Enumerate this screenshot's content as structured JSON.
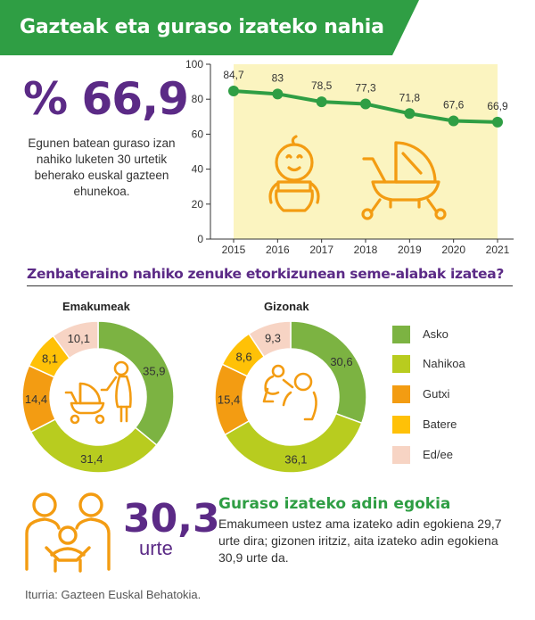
{
  "header": {
    "title": "Gazteak eta guraso izateko nahia",
    "bg_color": "#2f9e44"
  },
  "headline": {
    "value": "% 66,9",
    "description": "Egunen batean guraso izan nahiko luketen 30 urtetik beherako euskal gazteen ehunekoa."
  },
  "question": "Zenbateraino nahiko zenuke etorkizunean seme-alabak izatea?",
  "legend": [
    {
      "label": "Asko",
      "color": "#7cb342"
    },
    {
      "label": "Nahikoa",
      "color": "#b8cc1f"
    },
    {
      "label": "Gutxi",
      "color": "#f39c12"
    },
    {
      "label": "Batere",
      "color": "#ffc107"
    },
    {
      "label": "Ed/ee",
      "color": "#f7d4c4"
    }
  ],
  "age": {
    "value": "30,3",
    "unit": "urte",
    "title": "Guraso izateko adin egokia",
    "description": "Emakumeen ustez ama izateko adin egokiena  29,7 urte dira; gizonen iritziz, aita izateko adin egokiena 30,9 urte da."
  },
  "source": "Iturria: Gazteen Euskal Behatokia.",
  "icons": [
    "baby-icon",
    "stroller-icon",
    "mother-with-stroller-icon",
    "father-with-baby-icon",
    "family-icon"
  ],
  "chart_data": [
    {
      "type": "line",
      "x": [
        2015,
        2016,
        2017,
        2018,
        2019,
        2020,
        2021
      ],
      "values": [
        84.7,
        83,
        78.5,
        77.3,
        71.8,
        67.6,
        66.9
      ],
      "data_labels": [
        "84,7",
        "83",
        "78,5",
        "77,3",
        "71,8",
        "67,6",
        "66,9"
      ],
      "y_ticks": [
        0,
        20,
        40,
        60,
        80,
        100
      ],
      "ylim": [
        0,
        100
      ],
      "line_color": "#2f9e44",
      "area_color": "#fbf4c0",
      "grid": false
    },
    {
      "type": "pie",
      "title": "Emakumeak",
      "categories": [
        "Asko",
        "Nahikoa",
        "Gutxi",
        "Batere",
        "Ed/ee"
      ],
      "values": [
        35.9,
        31.4,
        14.4,
        8.1,
        10.1
      ],
      "labels": [
        "35,9",
        "31,4",
        "14,4",
        "8,1",
        "10,1"
      ]
    },
    {
      "type": "pie",
      "title": "Gizonak",
      "categories": [
        "Asko",
        "Nahikoa",
        "Gutxi",
        "Batere",
        "Ed/ee"
      ],
      "values": [
        30.6,
        36.1,
        15.4,
        8.6,
        9.3
      ],
      "labels": [
        "30,6",
        "36,1",
        "15,4",
        "8,6",
        "9,3"
      ]
    }
  ]
}
